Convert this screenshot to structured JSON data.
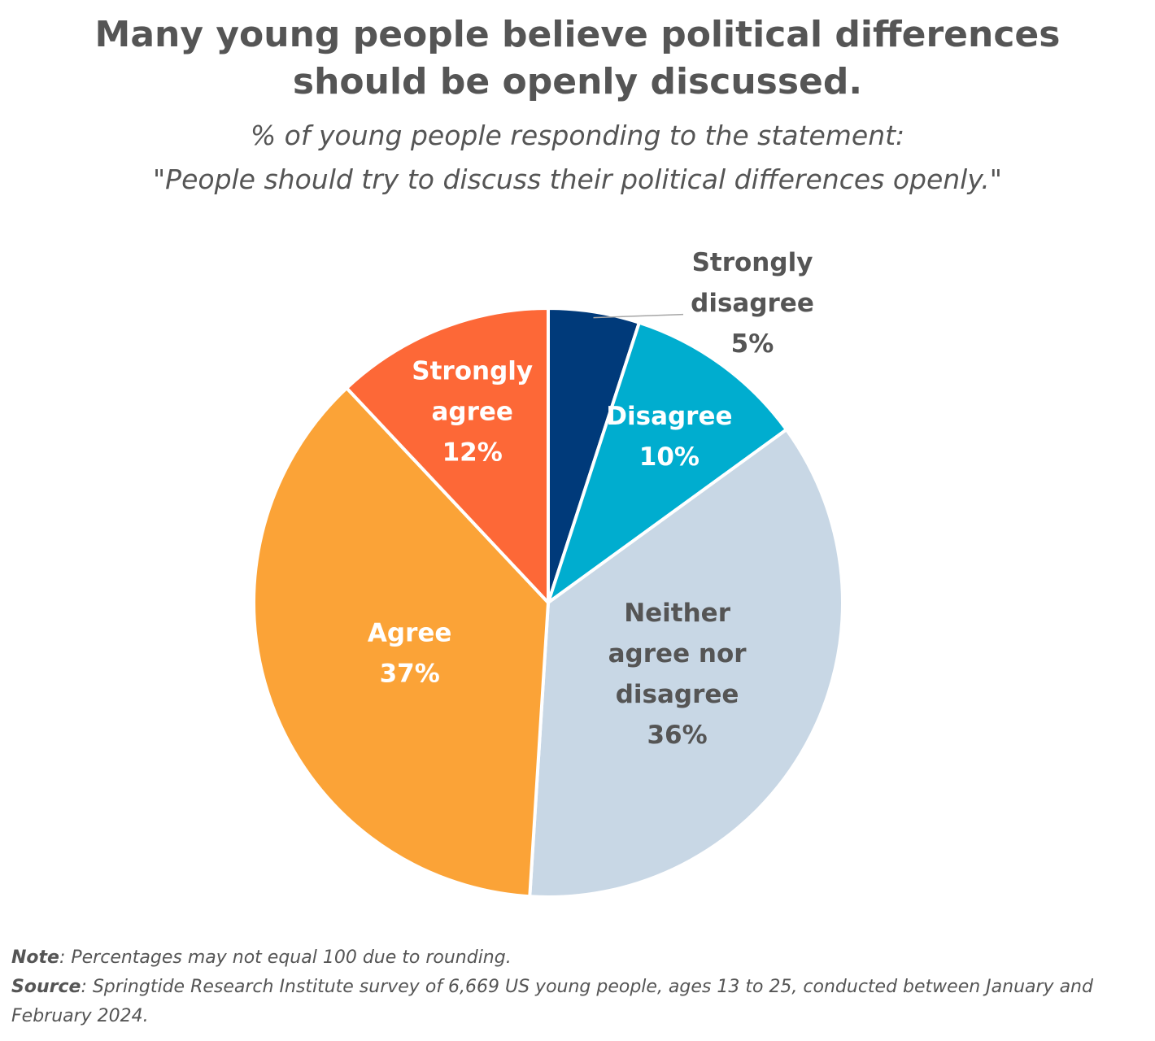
{
  "title_lines": [
    "Many young people believe political differences",
    "should be openly discussed."
  ],
  "subtitle_lines": [
    "% of young people responding to the statement:",
    "\"People should try to discuss their political differences openly.\""
  ],
  "chart_data": {
    "type": "pie",
    "title": "Many young people believe political differences should be openly discussed.",
    "subtitle": "% of young people responding to the statement: \"People should try to discuss their political differences openly.\"",
    "start_angle_deg": 0,
    "direction": "clockwise",
    "slices": [
      {
        "label": "Strongly disagree",
        "value": 5,
        "value_label": "5%",
        "color": "#003a7a",
        "label_lines": [
          "Strongly",
          "disagree",
          "5%"
        ],
        "label_color": "#555555",
        "label_outside": true
      },
      {
        "label": "Disagree",
        "value": 10,
        "value_label": "10%",
        "color": "#00adcf",
        "label_lines": [
          "Disagree",
          "10%"
        ],
        "label_color": "#ffffff",
        "label_outside": false
      },
      {
        "label": "Neither agree nor disagree",
        "value": 36,
        "value_label": "36%",
        "color": "#c8d7e5",
        "label_lines": [
          "Neither",
          "agree nor",
          "disagree",
          "36%"
        ],
        "label_color": "#555555",
        "label_outside": false
      },
      {
        "label": "Agree",
        "value": 37,
        "value_label": "37%",
        "color": "#fba337",
        "label_lines": [
          "Agree",
          "37%"
        ],
        "label_color": "#ffffff",
        "label_outside": false
      },
      {
        "label": "Strongly agree",
        "value": 12,
        "value_label": "12%",
        "color": "#fd6837",
        "label_lines": [
          "Strongly",
          "agree",
          "12%"
        ],
        "label_color": "#ffffff",
        "label_outside": false
      }
    ]
  },
  "footer": {
    "note_label": "Note",
    "note_text": ": Percentages may not equal 100 due to rounding.",
    "source_label": "Source",
    "source_text": ": Springtide Research Institute survey of 6,669 US young people, ages 13 to 25, conducted between January and February 2024."
  }
}
